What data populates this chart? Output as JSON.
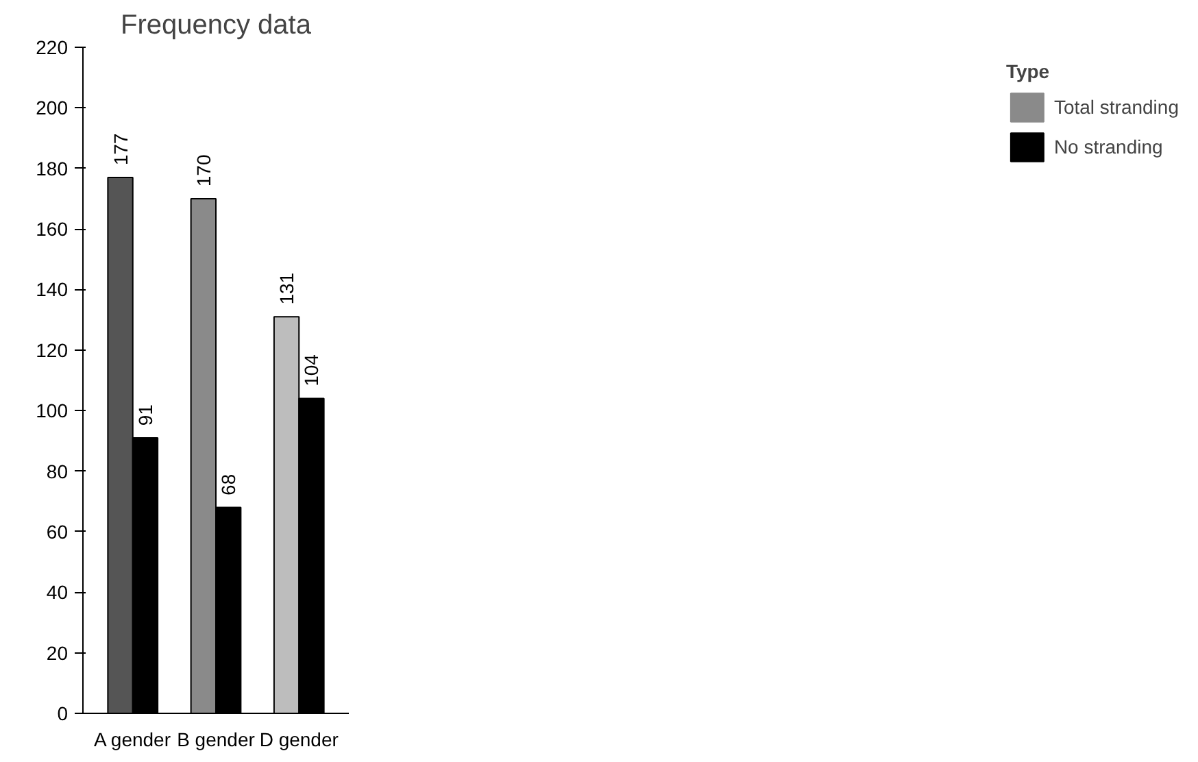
{
  "chart_data": {
    "type": "bar",
    "title": "Frequency data",
    "legend_title": "Type",
    "categories": [
      "A gender",
      "B gender",
      "D gender"
    ],
    "series": [
      {
        "name": "Total stranding",
        "color": "#8a8a8a",
        "colors": [
          "#555555",
          "#8a8a8a",
          "#bdbdbd"
        ],
        "values": [
          177,
          170,
          131
        ]
      },
      {
        "name": "No stranding",
        "color": "#000000",
        "values": [
          91,
          68,
          104
        ]
      }
    ],
    "ylim": [
      0,
      220
    ],
    "yticks": [
      0,
      20,
      40,
      60,
      80,
      100,
      120,
      140,
      160,
      180,
      200,
      220
    ],
    "data_labels": true,
    "grid": false,
    "legend": "top right"
  }
}
